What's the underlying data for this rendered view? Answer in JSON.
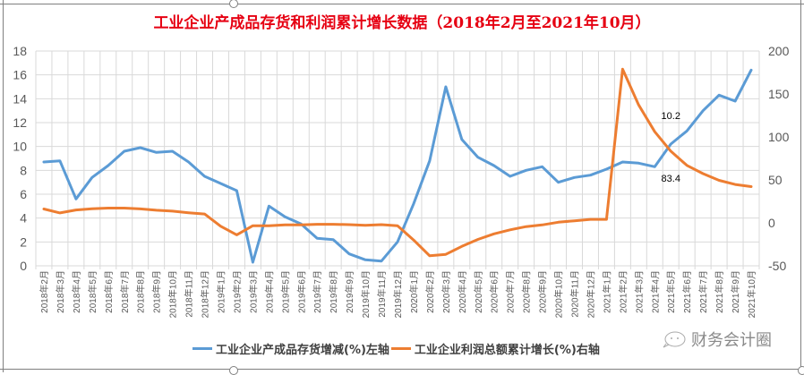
{
  "chart_data": {
    "type": "line",
    "title": "工业企业产成品存货和利润累计增长数据（2018年2月至2021年10月）",
    "xlabel": "",
    "ylabel_left": "",
    "ylabel_right": "",
    "ylim_left": [
      0,
      18
    ],
    "yticks_left": [
      0,
      2,
      4,
      6,
      8,
      10,
      12,
      14,
      16,
      18
    ],
    "ylim_right": [
      -50,
      200
    ],
    "yticks_right": [
      -50,
      0,
      50,
      100,
      150,
      200
    ],
    "grid": true,
    "legend_position": "bottom",
    "categories": [
      "2018年2月",
      "2018年3月",
      "2018年4月",
      "2018年5月",
      "2018年6月",
      "2018年7月",
      "2018年8月",
      "2018年9月",
      "2018年10月",
      "2018年11月",
      "2018年12月",
      "2019年1月",
      "2019年2月",
      "2019年3月",
      "2019年4月",
      "2019年5月",
      "2019年6月",
      "2019年7月",
      "2019年8月",
      "2019年9月",
      "2019年10月",
      "2019年11月",
      "2019年12月",
      "2020年1月",
      "2020年2月",
      "2020年3月",
      "2020年4月",
      "2020年5月",
      "2020年6月",
      "2020年7月",
      "2020年8月",
      "2020年9月",
      "2020年10月",
      "2020年11月",
      "2020年12月",
      "2021年1月",
      "2021年2月",
      "2021年3月",
      "2021年4月",
      "2021年5月",
      "2021年6月",
      "2021年7月",
      "2021年8月",
      "2021年9月",
      "2021年10月"
    ],
    "series": [
      {
        "name": "工业企业产成品存货增减(%)左轴",
        "axis": "left",
        "color": "#5b9bd5",
        "values": [
          8.7,
          8.8,
          5.6,
          7.4,
          8.4,
          9.6,
          9.9,
          9.5,
          9.6,
          8.7,
          7.5,
          6.9,
          6.3,
          0.3,
          5.0,
          4.1,
          3.5,
          2.3,
          2.2,
          1.0,
          0.5,
          0.4,
          2.0,
          5.2,
          8.8,
          15.0,
          10.6,
          9.1,
          8.4,
          7.5,
          8.0,
          8.3,
          7.0,
          7.4,
          7.6,
          8.1,
          8.7,
          8.6,
          8.3,
          10.2,
          11.3,
          13.0,
          14.3,
          13.8,
          16.4
        ]
      },
      {
        "name": "工业企业利润总额累计增长(%)右轴",
        "axis": "right",
        "color": "#ed7d31",
        "values": [
          16.1,
          11.6,
          15.0,
          16.5,
          17.2,
          17.2,
          16.2,
          14.7,
          13.6,
          11.8,
          10.3,
          -4.0,
          -14.0,
          -3.3,
          -3.4,
          -2.3,
          -2.4,
          -1.7,
          -1.7,
          -2.1,
          -2.9,
          -2.1,
          -3.3,
          -20.0,
          -38.3,
          -36.7,
          -27.4,
          -19.3,
          -12.8,
          -8.1,
          -4.4,
          -2.4,
          0.7,
          2.4,
          4.1,
          4.1,
          178.9,
          137.3,
          106.0,
          83.4,
          66.9,
          57.3,
          49.5,
          44.7,
          42.2
        ]
      }
    ],
    "annotations": [
      {
        "text": "10.2",
        "category": "2021年5月",
        "series": "left"
      },
      {
        "text": "83.4",
        "category": "2021年5月",
        "series": "right"
      }
    ]
  },
  "title": "工业企业产成品存货和利润累计增长数据（2018年2月至2021年10月）",
  "legend": {
    "items": [
      {
        "label": "工业企业产成品存货增减(%)左轴",
        "color": "#5b9bd5"
      },
      {
        "label": "工业企业利润总额累计增长(%)右轴",
        "color": "#ed7d31"
      }
    ]
  },
  "watermark": {
    "text": "财务会计圈",
    "icon": "wechat-icon"
  }
}
